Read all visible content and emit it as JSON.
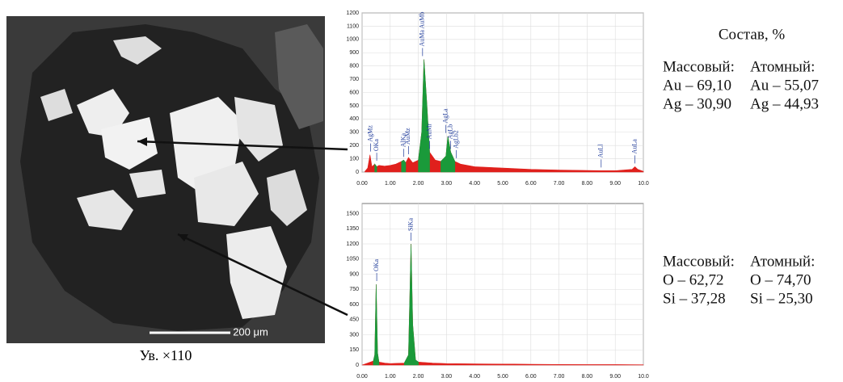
{
  "image": {
    "scale": "200 μm",
    "caption": "Ув. ×110"
  },
  "composition": {
    "title": "Состав, %",
    "blocks": [
      {
        "headers": [
          "Массовый:",
          "Атомный:"
        ],
        "rows": [
          [
            "Au – 69,10",
            "Au – 55,07"
          ],
          [
            "Ag – 30,90",
            "Ag – 44,93"
          ]
        ]
      },
      {
        "headers": [
          "Массовый:",
          "Атомный:"
        ],
        "rows": [
          [
            "O – 62,72",
            "O – 74,70"
          ],
          [
            "Si – 37,28",
            "Si – 25,30"
          ]
        ]
      }
    ]
  },
  "chart_data": [
    {
      "type": "area",
      "x": [
        0.1,
        0.2,
        0.28,
        0.35,
        0.45,
        0.52,
        0.6,
        0.8,
        1.0,
        1.2,
        1.4,
        1.48,
        1.55,
        1.65,
        1.8,
        2.0,
        2.12,
        2.2,
        2.3,
        2.4,
        2.6,
        2.8,
        2.98,
        3.05,
        3.15,
        3.3,
        3.5,
        4.0,
        5.0,
        6.0,
        7.0,
        8.0,
        8.5,
        9.0,
        9.6,
        9.7,
        9.8,
        10.0
      ],
      "series": [
        {
          "color": "#e0201c",
          "values": [
            5,
            30,
            130,
            40,
            60,
            40,
            50,
            45,
            50,
            60,
            80,
            90,
            70,
            110,
            70,
            90,
            300,
            850,
            520,
            150,
            90,
            80,
            120,
            270,
            150,
            80,
            60,
            40,
            30,
            20,
            15,
            12,
            10,
            10,
            20,
            40,
            20,
            5
          ]
        },
        {
          "color": "#1a9a3a",
          "values": [
            null,
            null,
            null,
            null,
            60,
            40,
            null,
            null,
            null,
            null,
            80,
            90,
            70,
            null,
            null,
            90,
            300,
            850,
            520,
            150,
            null,
            80,
            120,
            270,
            150,
            80,
            null,
            null,
            null,
            null,
            null,
            null,
            null,
            null,
            null,
            null,
            null,
            null
          ]
        }
      ],
      "xlim": [
        0,
        10
      ],
      "ylim": [
        0,
        1200
      ],
      "xticks": [
        {
          "value": 0,
          "label": "0.00"
        },
        {
          "value": 1,
          "label": "1.00"
        },
        {
          "value": 2,
          "label": "2.00"
        },
        {
          "value": 3,
          "label": "3.00"
        },
        {
          "value": 4,
          "label": "4.00"
        },
        {
          "value": 5,
          "label": "5.00"
        },
        {
          "value": 6,
          "label": "6.00"
        },
        {
          "value": 7,
          "label": "7.00"
        },
        {
          "value": 8,
          "label": "8.00"
        },
        {
          "value": 9,
          "label": "9.00"
        },
        {
          "value": 10,
          "label": "10.0"
        }
      ],
      "yticks": [
        0,
        100,
        200,
        300,
        400,
        500,
        600,
        700,
        800,
        900,
        1000,
        1100,
        1200
      ],
      "grid": true,
      "annotations": [
        {
          "text": "AgMz",
          "x": 0.3
        },
        {
          "text": "OKa",
          "x": 0.52
        },
        {
          "text": "AlKa",
          "x": 1.48
        },
        {
          "text": "AuMz",
          "x": 1.65
        },
        {
          "text": "AuMa AuMb",
          "x": 2.15
        },
        {
          "text": "AuMr",
          "x": 2.4
        },
        {
          "text": "AgLa",
          "x": 2.98
        },
        {
          "text": "AgLb",
          "x": 3.15
        },
        {
          "text": "AgLb2",
          "x": 3.35
        },
        {
          "text": "AuLl",
          "x": 8.5
        },
        {
          "text": "AuLa",
          "x": 9.7
        }
      ]
    },
    {
      "type": "area",
      "x": [
        0,
        0.2,
        0.4,
        0.45,
        0.5,
        0.55,
        0.6,
        0.8,
        1.0,
        1.5,
        1.65,
        1.74,
        1.8,
        1.9,
        2.0,
        2.5,
        3,
        4,
        5,
        6,
        7,
        8,
        9,
        10
      ],
      "series": [
        {
          "color": "#e0201c",
          "values": [
            0,
            20,
            40,
            100,
            800,
            120,
            30,
            20,
            15,
            20,
            100,
            1200,
            400,
            50,
            30,
            20,
            15,
            12,
            10,
            8,
            6,
            5,
            5,
            3
          ]
        },
        {
          "color": "#1a9a3a",
          "values": [
            null,
            null,
            40,
            100,
            800,
            120,
            30,
            null,
            null,
            20,
            100,
            1200,
            400,
            50,
            30,
            null,
            null,
            null,
            null,
            null,
            null,
            null,
            null,
            null
          ]
        }
      ],
      "xlim": [
        0,
        10
      ],
      "ylim": [
        0,
        1600
      ],
      "xticks": [
        {
          "value": 0,
          "label": "0.00"
        },
        {
          "value": 1,
          "label": "1.00"
        },
        {
          "value": 2,
          "label": "2.00"
        },
        {
          "value": 3,
          "label": "3.00"
        },
        {
          "value": 4,
          "label": "4.00"
        },
        {
          "value": 5,
          "label": "5.00"
        },
        {
          "value": 6,
          "label": "6.00"
        },
        {
          "value": 7,
          "label": "7.00"
        },
        {
          "value": 8,
          "label": "8.00"
        },
        {
          "value": 9,
          "label": "9.00"
        },
        {
          "value": 10,
          "label": "10.0"
        }
      ],
      "yticks": [
        0,
        150,
        300,
        450,
        600,
        750,
        900,
        1050,
        1200,
        1350,
        1500
      ],
      "grid": true,
      "annotations": [
        {
          "text": "OKa",
          "x": 0.52
        },
        {
          "text": "SiKa",
          "x": 1.74
        }
      ]
    }
  ]
}
